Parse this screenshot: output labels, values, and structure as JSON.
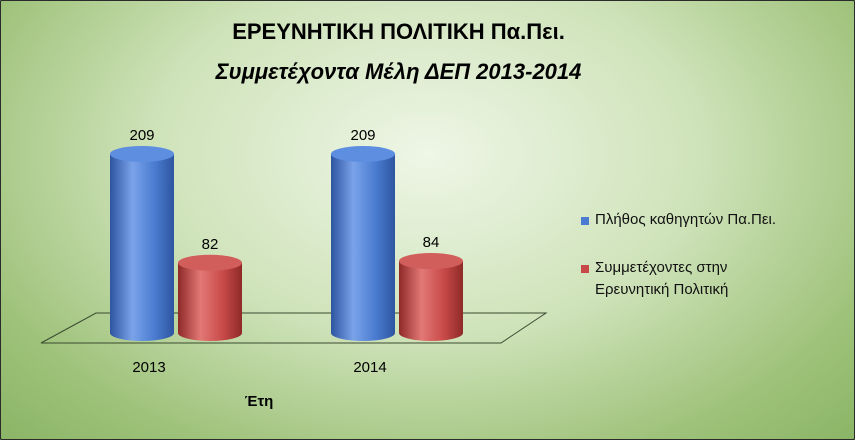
{
  "colors": {
    "series1": "#4a7bd0",
    "series2": "#c84a48"
  },
  "chart_data": {
    "type": "bar",
    "title": "ΕΡΕΥΝΗΤΙΚΗ ΠΟΛΙΤΙΚΗ Πα.Πει.",
    "subtitle": "Συμμετέχοντα Μέλη ΔΕΠ 2013-2014",
    "categories": [
      "2013",
      "2014"
    ],
    "xlabel": "Έτη",
    "ylabel": "",
    "ylim": [
      0,
      230
    ],
    "grid": false,
    "legend": "right",
    "series": [
      {
        "name": "Πλήθος καθηγητών Πα.Πει.",
        "values": [
          209,
          209
        ]
      },
      {
        "name": "Συμμετέχοντες στην Ερευνητική Πολιτική",
        "values": [
          82,
          84
        ]
      }
    ]
  },
  "legend": {
    "item1": "Πλήθος καθηγητών Πα.Πει.",
    "item2_line1": "Συμμετέχοντες στην",
    "item2_line2": "Ερευνητική Πολιτική"
  }
}
